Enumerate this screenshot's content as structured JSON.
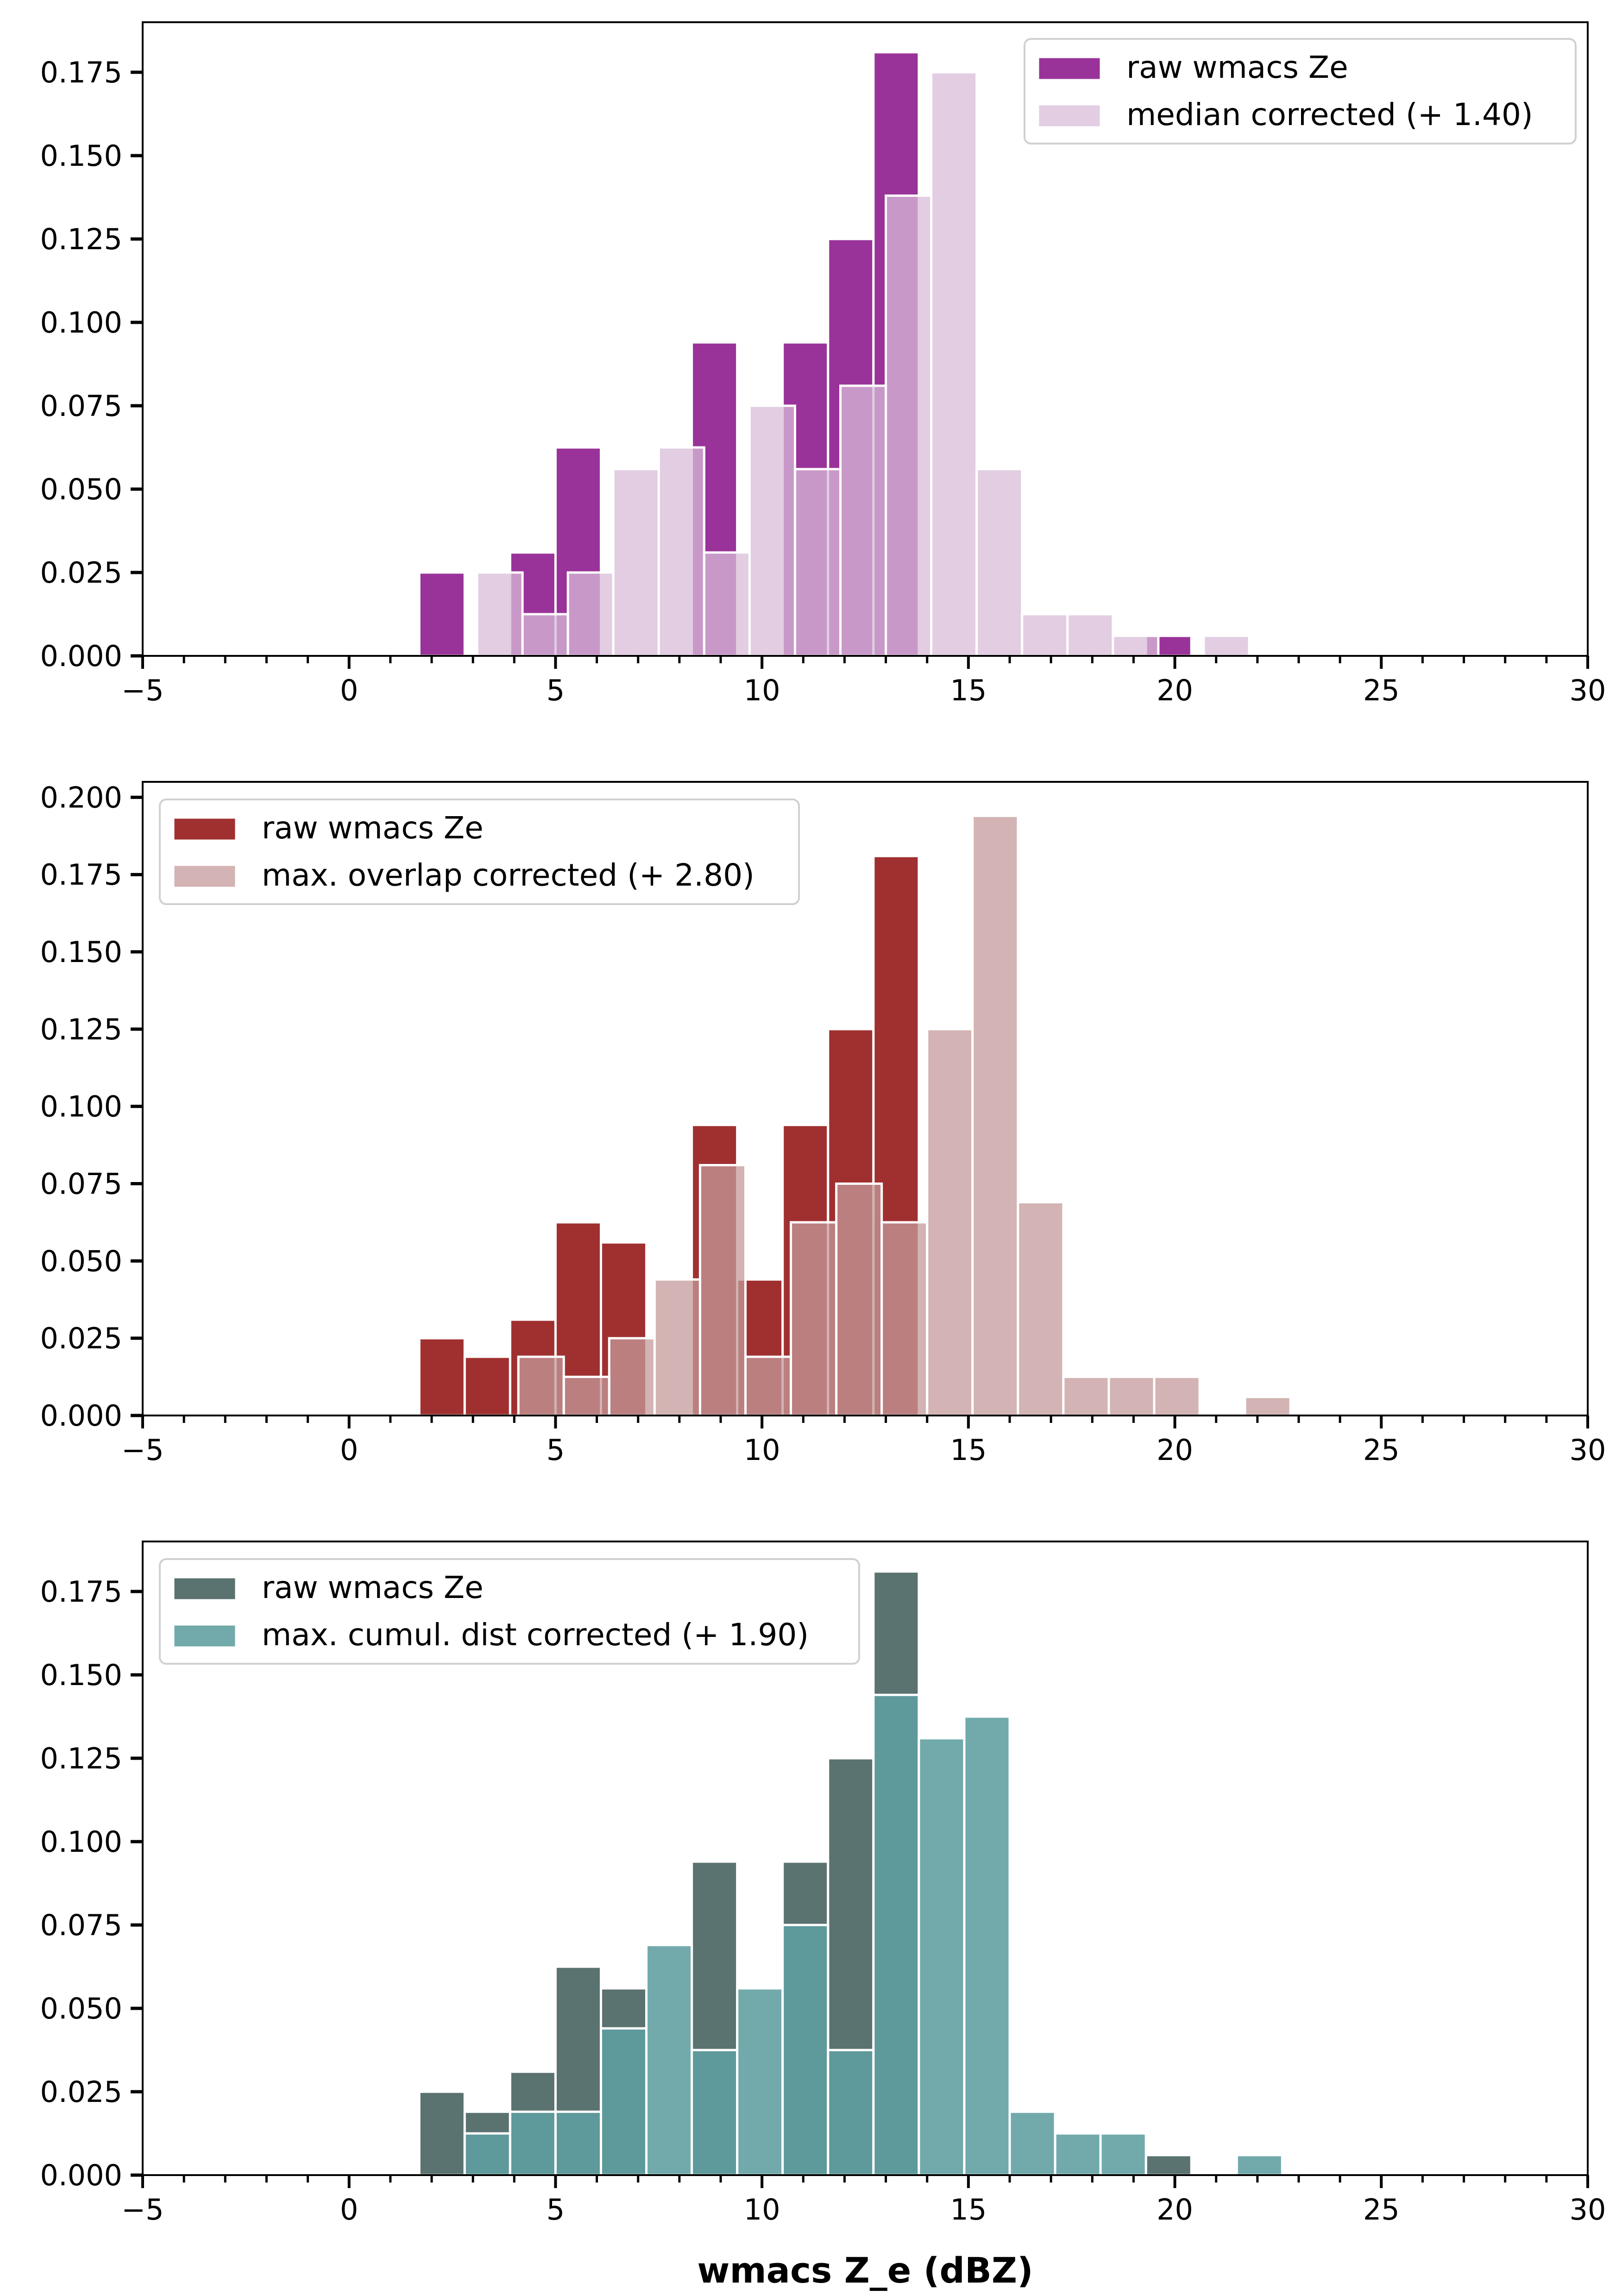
{
  "chart_data": [
    {
      "type": "bar",
      "subtype": "overlaid-histogram",
      "bin_width": 1.1,
      "xlim": [
        -5,
        30
      ],
      "ylim": [
        0,
        0.19
      ],
      "xticks": [
        -5,
        0,
        5,
        10,
        15,
        20,
        25,
        30
      ],
      "xtick_labels": [
        "−5",
        "0",
        "5",
        "10",
        "15",
        "20",
        "25",
        "30"
      ],
      "yticks": [
        0.0,
        0.025,
        0.05,
        0.075,
        0.1,
        0.125,
        0.15,
        0.175
      ],
      "ytick_labels": [
        "0.000",
        "0.025",
        "0.050",
        "0.075",
        "0.100",
        "0.125",
        "0.150",
        "0.175"
      ],
      "xlabel": "",
      "ylabel": "",
      "legend_position": "top-right",
      "series": [
        {
          "name": "raw wmacs Ze",
          "color": "#993399",
          "alpha": 1,
          "bins": [
            {
              "x": 1.7,
              "value": 0.025
            },
            {
              "x": 2.8,
              "value": 0.0
            },
            {
              "x": 3.9,
              "value": 0.031
            },
            {
              "x": 5.0,
              "value": 0.0625
            },
            {
              "x": 6.1,
              "value": 0.0
            },
            {
              "x": 7.2,
              "value": 0.0
            },
            {
              "x": 8.3,
              "value": 0.094
            },
            {
              "x": 9.4,
              "value": 0.0
            },
            {
              "x": 10.5,
              "value": 0.094
            },
            {
              "x": 11.6,
              "value": 0.125
            },
            {
              "x": 12.7,
              "value": 0.181
            },
            {
              "x": 19.3,
              "value": 0.006
            }
          ]
        },
        {
          "name": "median corrected (+ 1.40)",
          "color": "#d8bcd8",
          "alpha": 0.75,
          "bins": [
            {
              "x": 3.1,
              "value": 0.025
            },
            {
              "x": 4.2,
              "value": 0.0125
            },
            {
              "x": 5.3,
              "value": 0.025
            },
            {
              "x": 6.4,
              "value": 0.056
            },
            {
              "x": 7.5,
              "value": 0.0625
            },
            {
              "x": 8.6,
              "value": 0.031
            },
            {
              "x": 9.7,
              "value": 0.075
            },
            {
              "x": 10.8,
              "value": 0.056
            },
            {
              "x": 11.9,
              "value": 0.081
            },
            {
              "x": 13.0,
              "value": 0.138
            },
            {
              "x": 14.1,
              "value": 0.175
            },
            {
              "x": 15.2,
              "value": 0.056
            },
            {
              "x": 16.3,
              "value": 0.0125
            },
            {
              "x": 17.4,
              "value": 0.0125
            },
            {
              "x": 18.5,
              "value": 0.006
            },
            {
              "x": 20.7,
              "value": 0.006
            }
          ]
        }
      ]
    },
    {
      "type": "bar",
      "subtype": "overlaid-histogram",
      "bin_width": 1.1,
      "xlim": [
        -5,
        30
      ],
      "ylim": [
        0,
        0.205
      ],
      "xticks": [
        -5,
        0,
        5,
        10,
        15,
        20,
        25,
        30
      ],
      "xtick_labels": [
        "−5",
        "0",
        "5",
        "10",
        "15",
        "20",
        "25",
        "30"
      ],
      "yticks": [
        0.0,
        0.025,
        0.05,
        0.075,
        0.1,
        0.125,
        0.15,
        0.175,
        0.2
      ],
      "ytick_labels": [
        "0.000",
        "0.025",
        "0.050",
        "0.075",
        "0.100",
        "0.125",
        "0.150",
        "0.175",
        "0.200"
      ],
      "xlabel": "",
      "ylabel": "",
      "legend_position": "top-left",
      "series": [
        {
          "name": "raw wmacs Ze",
          "color": "#a03030",
          "alpha": 1,
          "bins": [
            {
              "x": 1.7,
              "value": 0.025
            },
            {
              "x": 2.8,
              "value": 0.019
            },
            {
              "x": 3.9,
              "value": 0.031
            },
            {
              "x": 5.0,
              "value": 0.0625
            },
            {
              "x": 6.1,
              "value": 0.056
            },
            {
              "x": 8.3,
              "value": 0.094
            },
            {
              "x": 9.4,
              "value": 0.044
            },
            {
              "x": 10.5,
              "value": 0.094
            },
            {
              "x": 11.6,
              "value": 0.125
            },
            {
              "x": 12.7,
              "value": 0.181
            }
          ]
        },
        {
          "name": "max. overlap corrected (+ 2.80)",
          "color": "#c49a9a",
          "alpha": 0.75,
          "bins": [
            {
              "x": 4.1,
              "value": 0.019
            },
            {
              "x": 5.2,
              "value": 0.0125
            },
            {
              "x": 6.3,
              "value": 0.025
            },
            {
              "x": 7.4,
              "value": 0.044
            },
            {
              "x": 8.5,
              "value": 0.081
            },
            {
              "x": 9.6,
              "value": 0.019
            },
            {
              "x": 10.7,
              "value": 0.0625
            },
            {
              "x": 11.8,
              "value": 0.075
            },
            {
              "x": 12.9,
              "value": 0.0625
            },
            {
              "x": 14.0,
              "value": 0.125
            },
            {
              "x": 15.1,
              "value": 0.194
            },
            {
              "x": 16.2,
              "value": 0.069
            },
            {
              "x": 17.3,
              "value": 0.0125
            },
            {
              "x": 18.4,
              "value": 0.0125
            },
            {
              "x": 19.5,
              "value": 0.0125
            },
            {
              "x": 21.7,
              "value": 0.006
            }
          ]
        }
      ]
    },
    {
      "type": "bar",
      "subtype": "overlaid-histogram",
      "bin_width": 1.1,
      "xlim": [
        -5,
        30
      ],
      "ylim": [
        0,
        0.19
      ],
      "xticks": [
        -5,
        0,
        5,
        10,
        15,
        20,
        25,
        30
      ],
      "xtick_labels": [
        "−5",
        "0",
        "5",
        "10",
        "15",
        "20",
        "25",
        "30"
      ],
      "yticks": [
        0.0,
        0.025,
        0.05,
        0.075,
        0.1,
        0.125,
        0.15,
        0.175
      ],
      "ytick_labels": [
        "0.000",
        "0.025",
        "0.050",
        "0.075",
        "0.100",
        "0.125",
        "0.150",
        "0.175"
      ],
      "xlabel": "wmacs Z_e (dBZ)",
      "ylabel": "",
      "legend_position": "top-left",
      "series": [
        {
          "name": "raw wmacs Ze",
          "color": "#5a7270",
          "alpha": 1,
          "bins": [
            {
              "x": 1.7,
              "value": 0.025
            },
            {
              "x": 2.8,
              "value": 0.019
            },
            {
              "x": 3.9,
              "value": 0.031
            },
            {
              "x": 5.0,
              "value": 0.0625
            },
            {
              "x": 6.1,
              "value": 0.056
            },
            {
              "x": 8.3,
              "value": 0.094
            },
            {
              "x": 10.5,
              "value": 0.094
            },
            {
              "x": 11.6,
              "value": 0.125
            },
            {
              "x": 12.7,
              "value": 0.181
            },
            {
              "x": 19.3,
              "value": 0.006
            }
          ]
        },
        {
          "name": "max. cumul. dist corrected (+ 1.90)",
          "color": "#5f9ea0",
          "alpha": 0.88,
          "bins": [
            {
              "x": 2.8,
              "value": 0.0125
            },
            {
              "x": 3.9,
              "value": 0.019
            },
            {
              "x": 5.0,
              "value": 0.019
            },
            {
              "x": 6.1,
              "value": 0.044
            },
            {
              "x": 7.2,
              "value": 0.069
            },
            {
              "x": 8.3,
              "value": 0.0375
            },
            {
              "x": 9.4,
              "value": 0.056
            },
            {
              "x": 10.5,
              "value": 0.075
            },
            {
              "x": 11.6,
              "value": 0.0375
            },
            {
              "x": 12.7,
              "value": 0.144
            },
            {
              "x": 13.8,
              "value": 0.131
            },
            {
              "x": 14.9,
              "value": 0.1375
            },
            {
              "x": 16.0,
              "value": 0.019
            },
            {
              "x": 17.1,
              "value": 0.0125
            },
            {
              "x": 18.2,
              "value": 0.0125
            },
            {
              "x": 21.5,
              "value": 0.006
            }
          ]
        }
      ]
    }
  ]
}
